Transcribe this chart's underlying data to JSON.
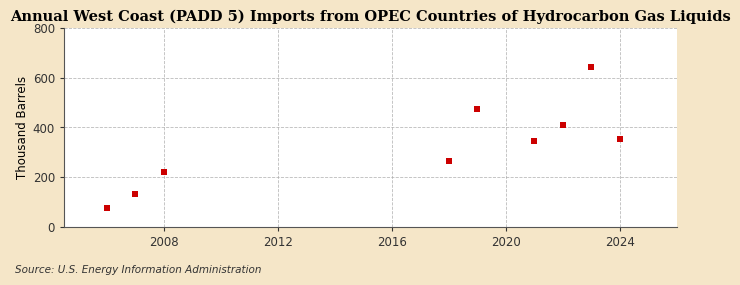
{
  "title": "Annual West Coast (PADD 5) Imports from OPEC Countries of Hydrocarbon Gas Liquids",
  "ylabel": "Thousand Barrels",
  "source": "Source: U.S. Energy Information Administration",
  "x_data": [
    2006,
    2007,
    2008,
    2018,
    2019,
    2021,
    2022,
    2023,
    2024
  ],
  "y_data": [
    75,
    130,
    220,
    265,
    475,
    345,
    410,
    645,
    355
  ],
  "marker_color": "#cc0000",
  "marker_style": "s",
  "marker_size": 4,
  "outer_background": "#f5e6c8",
  "plot_background": "#ffffff",
  "grid_color": "#aaaaaa",
  "xlim": [
    2004.5,
    2026
  ],
  "ylim": [
    0,
    800
  ],
  "xticks": [
    2008,
    2012,
    2016,
    2020,
    2024
  ],
  "yticks": [
    0,
    200,
    400,
    600,
    800
  ],
  "title_fontsize": 10.5,
  "label_fontsize": 8.5,
  "source_fontsize": 7.5
}
